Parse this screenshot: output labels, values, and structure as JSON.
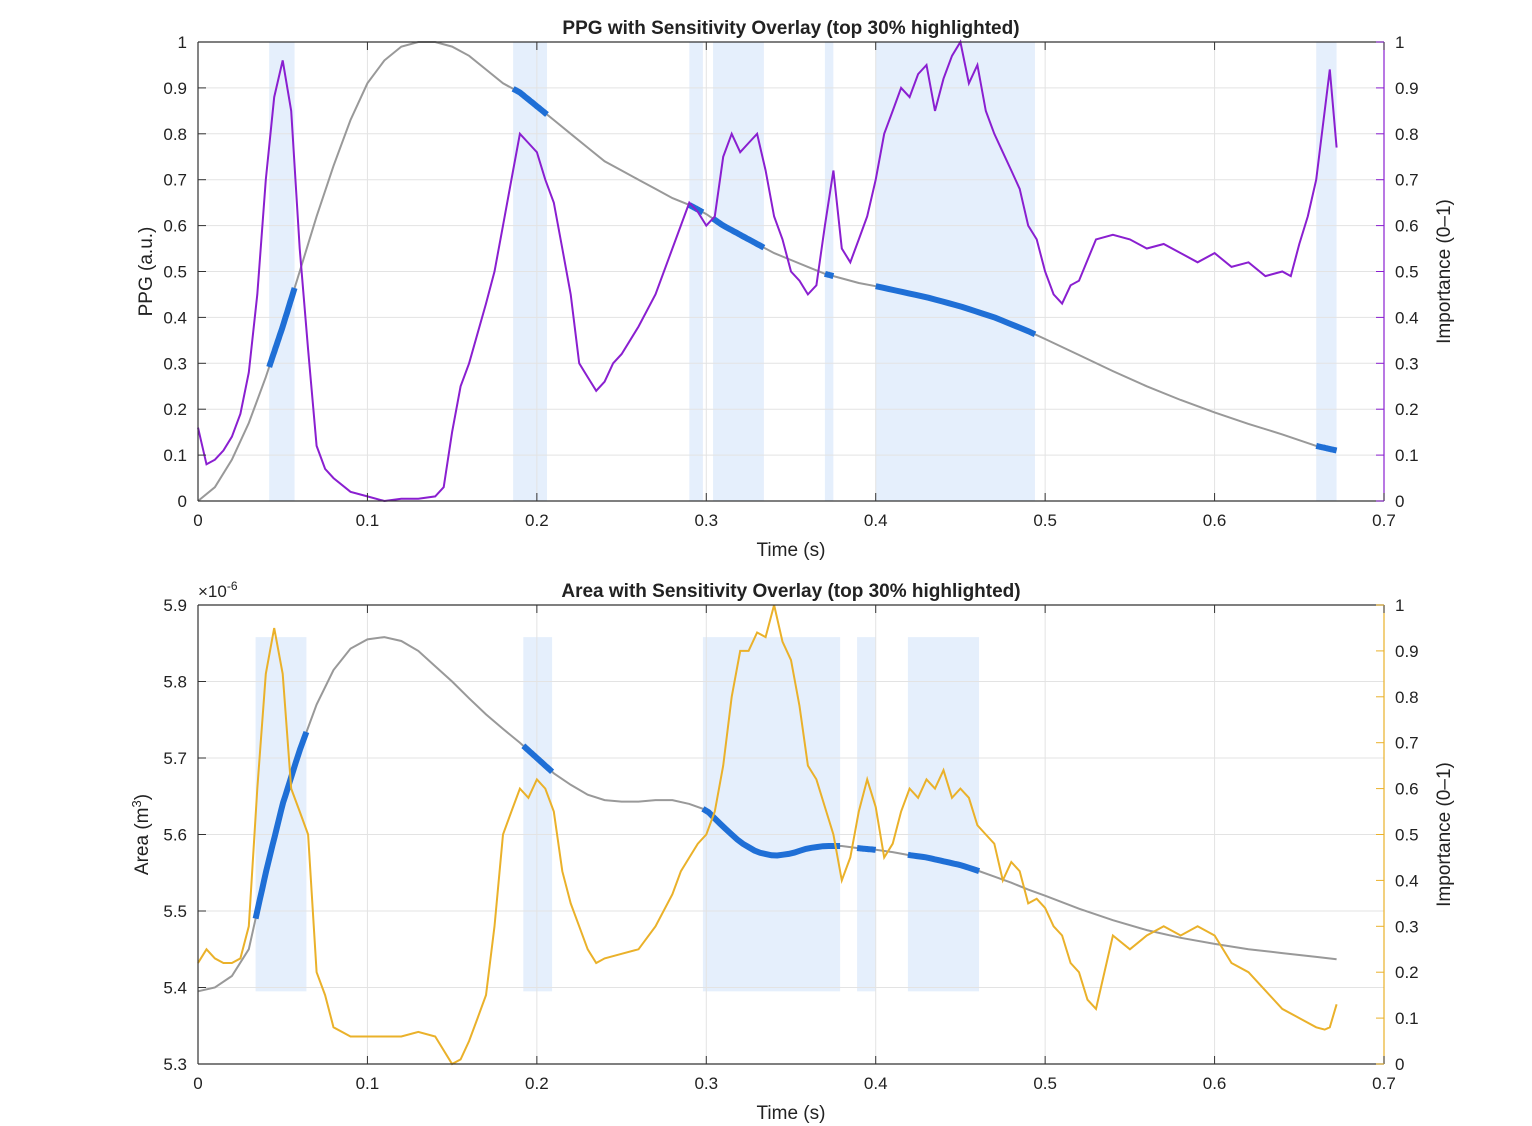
{
  "colors": {
    "signal": "#999999",
    "highlight": "#1f6fd6",
    "band": "#e5effc",
    "importance_top": "#8a1fd0",
    "importance_bottom": "#eab12a",
    "grid": "#e3e3e3",
    "axis": "#333333"
  },
  "chart_data": [
    {
      "type": "line",
      "title": "PPG with Sensitivity Overlay (top 30% highlighted)",
      "xlabel": "Time (s)",
      "ylabel": "PPG (a.u.)",
      "ylabel_right": "Importance (0–1)",
      "xlim": [
        0,
        0.7
      ],
      "ylim": [
        0,
        1
      ],
      "ylim_right": [
        0,
        1
      ],
      "xticks": [
        "0",
        "0.1",
        "0.2",
        "0.3",
        "0.4",
        "0.5",
        "0.6",
        "0.7"
      ],
      "yticks": [
        "0",
        "0.1",
        "0.2",
        "0.3",
        "0.4",
        "0.5",
        "0.6",
        "0.7",
        "0.8",
        "0.9",
        "1"
      ],
      "yticks_right": [
        "0",
        "0.1",
        "0.2",
        "0.3",
        "0.4",
        "0.5",
        "0.6",
        "0.7",
        "0.8",
        "0.9",
        "1"
      ],
      "grid": true,
      "highlight_regions": [
        [
          0.042,
          0.057
        ],
        [
          0.186,
          0.206
        ],
        [
          0.29,
          0.298
        ],
        [
          0.304,
          0.334
        ],
        [
          0.37,
          0.375
        ],
        [
          0.4,
          0.494
        ],
        [
          0.66,
          0.672
        ]
      ],
      "series": [
        {
          "role": "signal",
          "axis": "left",
          "x": [
            0,
            0.01,
            0.02,
            0.03,
            0.04,
            0.05,
            0.06,
            0.07,
            0.08,
            0.09,
            0.1,
            0.11,
            0.12,
            0.13,
            0.14,
            0.15,
            0.16,
            0.17,
            0.18,
            0.19,
            0.2,
            0.21,
            0.22,
            0.23,
            0.24,
            0.25,
            0.26,
            0.27,
            0.28,
            0.29,
            0.3,
            0.31,
            0.32,
            0.33,
            0.34,
            0.35,
            0.36,
            0.37,
            0.38,
            0.39,
            0.4,
            0.41,
            0.42,
            0.43,
            0.44,
            0.45,
            0.46,
            0.47,
            0.48,
            0.49,
            0.5,
            0.52,
            0.54,
            0.56,
            0.58,
            0.6,
            0.62,
            0.64,
            0.66,
            0.672
          ],
          "y": [
            0,
            0.03,
            0.09,
            0.17,
            0.27,
            0.38,
            0.5,
            0.62,
            0.73,
            0.83,
            0.91,
            0.96,
            0.99,
            1.0,
            1.0,
            0.99,
            0.97,
            0.94,
            0.91,
            0.89,
            0.86,
            0.83,
            0.8,
            0.77,
            0.74,
            0.72,
            0.7,
            0.68,
            0.66,
            0.645,
            0.625,
            0.6,
            0.58,
            0.56,
            0.54,
            0.525,
            0.51,
            0.495,
            0.485,
            0.475,
            0.468,
            0.46,
            0.452,
            0.444,
            0.434,
            0.424,
            0.412,
            0.4,
            0.385,
            0.37,
            0.353,
            0.318,
            0.283,
            0.25,
            0.22,
            0.193,
            0.168,
            0.145,
            0.12,
            0.11
          ]
        },
        {
          "role": "importance",
          "axis": "right",
          "name": "Importance (0–1)",
          "x": [
            0,
            0.005,
            0.01,
            0.015,
            0.02,
            0.025,
            0.03,
            0.035,
            0.04,
            0.045,
            0.05,
            0.055,
            0.06,
            0.065,
            0.07,
            0.075,
            0.08,
            0.09,
            0.1,
            0.11,
            0.12,
            0.13,
            0.14,
            0.145,
            0.15,
            0.155,
            0.16,
            0.17,
            0.175,
            0.18,
            0.185,
            0.19,
            0.195,
            0.2,
            0.205,
            0.21,
            0.215,
            0.22,
            0.225,
            0.23,
            0.235,
            0.24,
            0.245,
            0.25,
            0.26,
            0.27,
            0.28,
            0.29,
            0.295,
            0.3,
            0.305,
            0.31,
            0.315,
            0.32,
            0.325,
            0.33,
            0.335,
            0.34,
            0.345,
            0.35,
            0.355,
            0.36,
            0.365,
            0.37,
            0.375,
            0.38,
            0.385,
            0.39,
            0.395,
            0.4,
            0.405,
            0.41,
            0.415,
            0.42,
            0.425,
            0.43,
            0.435,
            0.44,
            0.445,
            0.45,
            0.455,
            0.46,
            0.465,
            0.47,
            0.475,
            0.48,
            0.485,
            0.49,
            0.495,
            0.5,
            0.505,
            0.51,
            0.515,
            0.52,
            0.53,
            0.54,
            0.55,
            0.56,
            0.57,
            0.58,
            0.59,
            0.6,
            0.61,
            0.62,
            0.63,
            0.64,
            0.645,
            0.65,
            0.655,
            0.66,
            0.665,
            0.668,
            0.672
          ],
          "y": [
            0.16,
            0.08,
            0.09,
            0.11,
            0.14,
            0.19,
            0.28,
            0.45,
            0.7,
            0.88,
            0.96,
            0.85,
            0.55,
            0.33,
            0.12,
            0.07,
            0.05,
            0.02,
            0.01,
            0.0,
            0.005,
            0.005,
            0.01,
            0.03,
            0.15,
            0.25,
            0.3,
            0.43,
            0.5,
            0.6,
            0.7,
            0.8,
            0.78,
            0.76,
            0.7,
            0.65,
            0.55,
            0.45,
            0.3,
            0.27,
            0.24,
            0.26,
            0.3,
            0.32,
            0.38,
            0.45,
            0.55,
            0.65,
            0.63,
            0.6,
            0.62,
            0.75,
            0.8,
            0.76,
            0.78,
            0.8,
            0.72,
            0.62,
            0.57,
            0.5,
            0.48,
            0.45,
            0.47,
            0.6,
            0.72,
            0.55,
            0.52,
            0.57,
            0.62,
            0.7,
            0.8,
            0.85,
            0.9,
            0.88,
            0.93,
            0.95,
            0.85,
            0.92,
            0.97,
            1.0,
            0.91,
            0.95,
            0.85,
            0.8,
            0.76,
            0.72,
            0.68,
            0.6,
            0.57,
            0.5,
            0.45,
            0.43,
            0.47,
            0.48,
            0.57,
            0.58,
            0.57,
            0.55,
            0.56,
            0.54,
            0.52,
            0.54,
            0.51,
            0.52,
            0.49,
            0.5,
            0.49,
            0.56,
            0.62,
            0.7,
            0.85,
            0.94,
            0.77
          ]
        }
      ]
    },
    {
      "type": "line",
      "title": "Area with Sensitivity Overlay (top 30% highlighted)",
      "xlabel": "Time (s)",
      "ylabel": "Area  (m",
      "ylabel_superscript": "3",
      "ylabel_close": ")",
      "ylabel_right": "Importance (0–1)",
      "y_multiplier_base": "×10",
      "y_multiplier_exp": "-6",
      "xlim": [
        0,
        0.7
      ],
      "ylim": [
        5.3,
        5.9
      ],
      "ylim_right": [
        0,
        1
      ],
      "xticks": [
        "0",
        "0.1",
        "0.2",
        "0.3",
        "0.4",
        "0.5",
        "0.6",
        "0.7"
      ],
      "yticks": [
        "5.3",
        "5.4",
        "5.5",
        "5.6",
        "5.7",
        "5.8",
        "5.9"
      ],
      "yticks_right": [
        "0",
        "0.1",
        "0.2",
        "0.3",
        "0.4",
        "0.5",
        "0.6",
        "0.7",
        "0.8",
        "0.9",
        "1"
      ],
      "grid": true,
      "highlight_regions": [
        [
          0.034,
          0.064
        ],
        [
          0.192,
          0.209
        ],
        [
          0.298,
          0.379
        ],
        [
          0.389,
          0.4
        ],
        [
          0.419,
          0.461
        ]
      ],
      "series": [
        {
          "role": "signal",
          "axis": "left",
          "x": [
            0,
            0.01,
            0.02,
            0.03,
            0.04,
            0.05,
            0.06,
            0.07,
            0.08,
            0.09,
            0.1,
            0.11,
            0.12,
            0.13,
            0.14,
            0.15,
            0.16,
            0.17,
            0.18,
            0.19,
            0.2,
            0.21,
            0.22,
            0.23,
            0.24,
            0.25,
            0.26,
            0.27,
            0.28,
            0.29,
            0.3,
            0.31,
            0.32,
            0.33,
            0.34,
            0.35,
            0.36,
            0.37,
            0.38,
            0.39,
            0.4,
            0.41,
            0.42,
            0.43,
            0.44,
            0.45,
            0.46,
            0.47,
            0.48,
            0.49,
            0.5,
            0.52,
            0.54,
            0.56,
            0.58,
            0.6,
            0.62,
            0.64,
            0.66,
            0.672
          ],
          "y": [
            5.395,
            5.4,
            5.415,
            5.45,
            5.55,
            5.64,
            5.71,
            5.77,
            5.815,
            5.843,
            5.855,
            5.858,
            5.853,
            5.84,
            5.82,
            5.8,
            5.778,
            5.757,
            5.738,
            5.72,
            5.7,
            5.68,
            5.665,
            5.652,
            5.645,
            5.643,
            5.643,
            5.645,
            5.645,
            5.64,
            5.632,
            5.61,
            5.59,
            5.577,
            5.572,
            5.575,
            5.582,
            5.585,
            5.585,
            5.582,
            5.58,
            5.577,
            5.573,
            5.57,
            5.565,
            5.56,
            5.553,
            5.545,
            5.537,
            5.528,
            5.52,
            5.503,
            5.488,
            5.475,
            5.465,
            5.457,
            5.45,
            5.445,
            5.44,
            5.437
          ]
        },
        {
          "role": "importance",
          "axis": "right",
          "name": "Importance (0–1)",
          "x": [
            0,
            0.005,
            0.01,
            0.015,
            0.02,
            0.025,
            0.03,
            0.035,
            0.04,
            0.045,
            0.05,
            0.055,
            0.06,
            0.065,
            0.07,
            0.075,
            0.08,
            0.09,
            0.1,
            0.11,
            0.12,
            0.13,
            0.14,
            0.15,
            0.155,
            0.16,
            0.165,
            0.17,
            0.175,
            0.18,
            0.185,
            0.19,
            0.195,
            0.2,
            0.205,
            0.21,
            0.215,
            0.22,
            0.225,
            0.23,
            0.235,
            0.24,
            0.25,
            0.26,
            0.27,
            0.28,
            0.285,
            0.29,
            0.295,
            0.3,
            0.305,
            0.31,
            0.315,
            0.32,
            0.325,
            0.33,
            0.335,
            0.34,
            0.345,
            0.35,
            0.355,
            0.36,
            0.365,
            0.37,
            0.375,
            0.38,
            0.385,
            0.39,
            0.395,
            0.4,
            0.405,
            0.41,
            0.415,
            0.42,
            0.425,
            0.43,
            0.435,
            0.44,
            0.445,
            0.45,
            0.455,
            0.46,
            0.465,
            0.47,
            0.475,
            0.48,
            0.485,
            0.49,
            0.495,
            0.5,
            0.505,
            0.51,
            0.515,
            0.52,
            0.525,
            0.53,
            0.54,
            0.55,
            0.56,
            0.57,
            0.58,
            0.59,
            0.6,
            0.61,
            0.62,
            0.63,
            0.64,
            0.65,
            0.66,
            0.665,
            0.668,
            0.672
          ],
          "y": [
            0.22,
            0.25,
            0.23,
            0.22,
            0.22,
            0.23,
            0.3,
            0.6,
            0.85,
            0.95,
            0.85,
            0.6,
            0.55,
            0.5,
            0.2,
            0.15,
            0.08,
            0.06,
            0.06,
            0.06,
            0.06,
            0.07,
            0.06,
            0.0,
            0.01,
            0.05,
            0.1,
            0.15,
            0.3,
            0.5,
            0.55,
            0.6,
            0.58,
            0.62,
            0.6,
            0.55,
            0.42,
            0.35,
            0.3,
            0.25,
            0.22,
            0.23,
            0.24,
            0.25,
            0.3,
            0.37,
            0.42,
            0.45,
            0.48,
            0.5,
            0.55,
            0.65,
            0.8,
            0.9,
            0.9,
            0.94,
            0.93,
            1.0,
            0.92,
            0.88,
            0.78,
            0.65,
            0.62,
            0.56,
            0.5,
            0.4,
            0.45,
            0.55,
            0.62,
            0.56,
            0.45,
            0.48,
            0.55,
            0.6,
            0.58,
            0.62,
            0.6,
            0.64,
            0.58,
            0.6,
            0.58,
            0.52,
            0.5,
            0.48,
            0.4,
            0.44,
            0.42,
            0.35,
            0.36,
            0.34,
            0.3,
            0.28,
            0.22,
            0.2,
            0.14,
            0.12,
            0.28,
            0.25,
            0.28,
            0.3,
            0.28,
            0.3,
            0.28,
            0.22,
            0.2,
            0.16,
            0.12,
            0.1,
            0.08,
            0.075,
            0.08,
            0.13
          ]
        }
      ]
    }
  ]
}
